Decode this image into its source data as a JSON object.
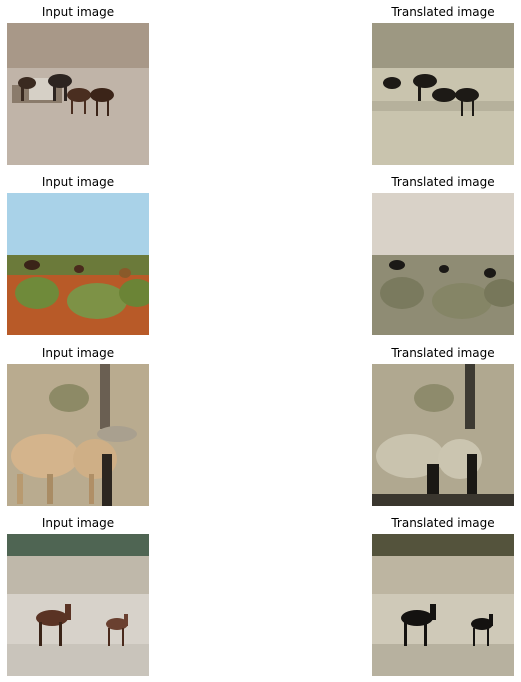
{
  "rows": [
    {
      "input": {
        "caption": "Input image",
        "alt": "horses-dirt-field"
      },
      "output": {
        "caption": "Translated image",
        "alt": "horses-dirt-field-translated"
      }
    },
    {
      "input": {
        "caption": "Input image",
        "alt": "horses-red-dirt-shrubs"
      },
      "output": {
        "caption": "Translated image",
        "alt": "horses-red-dirt-shrubs-translated"
      }
    },
    {
      "input": {
        "caption": "Input image",
        "alt": "horses-closeup-pole"
      },
      "output": {
        "caption": "Translated image",
        "alt": "horses-closeup-pole-translated"
      }
    },
    {
      "input": {
        "caption": "Input image",
        "alt": "horses-beach"
      },
      "output": {
        "caption": "Translated image",
        "alt": "horses-beach-translated"
      }
    }
  ]
}
